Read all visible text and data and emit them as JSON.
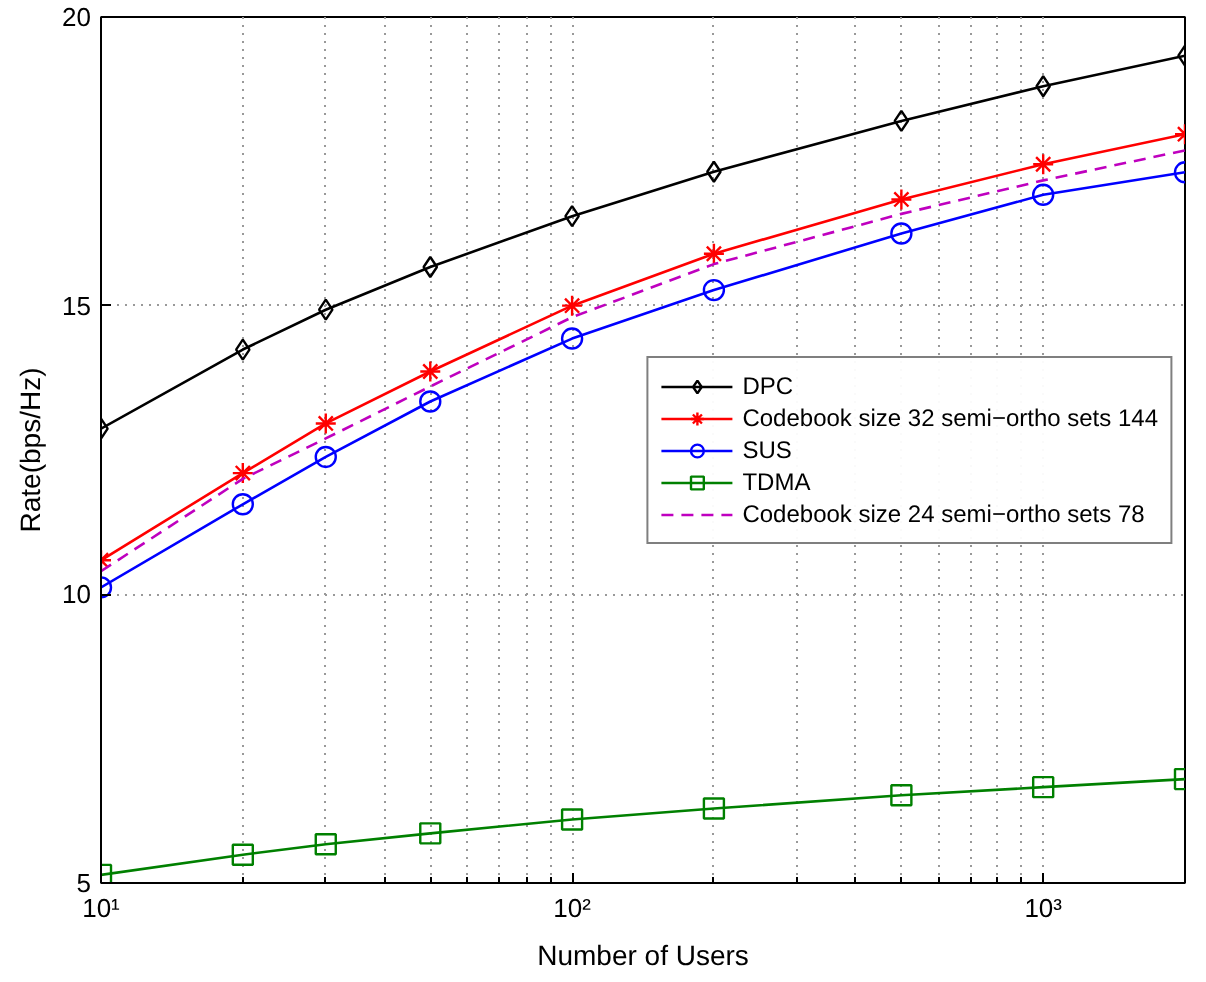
{
  "chart_data": {
    "type": "line",
    "xlabel": "Number of Users",
    "ylabel": "Rate(bps/Hz)",
    "x": [
      10,
      20,
      30,
      50,
      100,
      200,
      500,
      1000,
      2000
    ],
    "series": [
      {
        "name": "DPC",
        "color": "#000000",
        "marker": "diamond",
        "line_style": "solid",
        "values": [
          12.87,
          14.24,
          14.93,
          15.67,
          16.55,
          17.32,
          18.2,
          18.8,
          19.33
        ]
      },
      {
        "name": "Codebook size 32 semi−ortho sets 144",
        "color": "#ff0000",
        "marker": "cross",
        "line_style": "solid",
        "values": [
          10.59,
          12.1,
          12.96,
          13.86,
          15.0,
          15.9,
          16.84,
          17.45,
          17.97
        ]
      },
      {
        "name": "SUS",
        "color": "#0000ff",
        "marker": "circle",
        "line_style": "solid",
        "values": [
          10.12,
          11.56,
          12.38,
          13.34,
          14.43,
          15.27,
          16.25,
          16.92,
          17.31
        ]
      },
      {
        "name": "TDMA",
        "color": "#008000",
        "marker": "square",
        "line_style": "solid",
        "values": [
          5.14,
          5.49,
          5.67,
          5.86,
          6.1,
          6.29,
          6.52,
          6.66,
          6.8
        ]
      },
      {
        "name": "Codebook size 24 semi−ortho sets 78",
        "color": "#bf00bf",
        "marker": "none",
        "line_style": "dashed",
        "values": [
          10.4,
          12.0,
          12.7,
          13.6,
          14.8,
          15.72,
          16.59,
          17.17,
          17.69
        ]
      }
    ],
    "log": "x",
    "xlim": [
      10,
      2000
    ],
    "ylim": [
      5,
      20
    ],
    "xticks": [
      {
        "value": 10,
        "label": "10¹"
      },
      {
        "value": 100,
        "label": "10²"
      },
      {
        "value": 1000,
        "label": "10³"
      }
    ],
    "yticks": [
      5,
      10,
      15,
      20
    ],
    "grid": true,
    "legend": "right"
  }
}
